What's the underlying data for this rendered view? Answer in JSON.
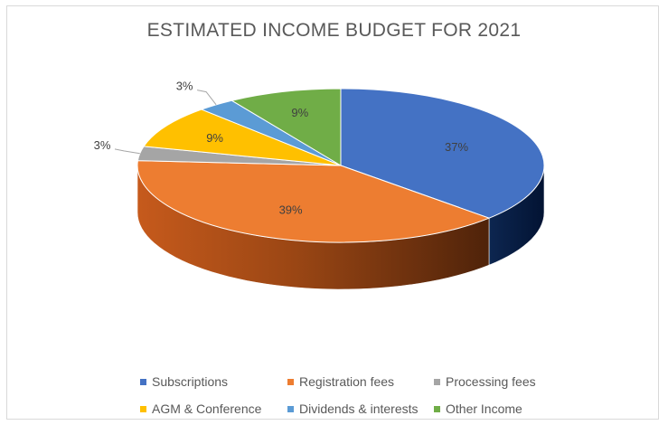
{
  "chart_data": {
    "type": "pie",
    "title": "ESTIMATED INCOME BUDGET FOR 2021",
    "categories": [
      "Subscriptions",
      "Registration fees",
      "Processing fees",
      "AGM & Conference",
      "Dividends & interests",
      "Other Income"
    ],
    "values": [
      37,
      39,
      3,
      9,
      3,
      9
    ],
    "data_labels": [
      "37%",
      "39%",
      "3%",
      "9%",
      "3%",
      "9%"
    ],
    "colors": [
      "#4472c4",
      "#ed7d31",
      "#a5a5a5",
      "#ffc000",
      "#5b9bd5",
      "#70ad47"
    ],
    "legend_position": "bottom",
    "style": "3d-pie"
  }
}
